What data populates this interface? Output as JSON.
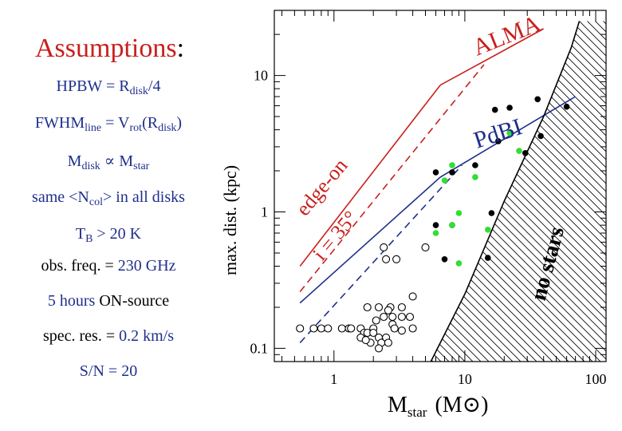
{
  "title": {
    "main": "Assumptions",
    "colon": ":"
  },
  "assumptions": {
    "hpbw": {
      "lhs": "HPBW = R",
      "sub": "disk",
      "rhs": "/4"
    },
    "fwhm": {
      "lhs": "FWHM",
      "sub1": "line",
      "mid": " = V",
      "sub2": "rot",
      "mid2": "(R",
      "sub3": "disk",
      "rhs": ")"
    },
    "mdisk": {
      "lhs": "M",
      "sub1": "disk",
      "mid": " ∝ M",
      "sub2": "star"
    },
    "ncol": {
      "text": "same <N",
      "sub": "col",
      "rhs": "> in all disks"
    },
    "tb": {
      "lhs": "T",
      "sub": "B",
      "rhs": " > 20 K"
    },
    "freq": {
      "label": "obs. freq. = ",
      "value": "230 GHz"
    },
    "hours": {
      "value": "5 hours",
      "label": " ON-source"
    },
    "specres": {
      "label": "spec. res. = ",
      "value": "0.2 km/s"
    },
    "sn": {
      "text": "S/N = 20"
    }
  },
  "chart_data": {
    "type": "scatter",
    "xscale": "log",
    "yscale": "log",
    "xlim": [
      0.35,
      120
    ],
    "ylim": [
      0.08,
      30
    ],
    "xlabel": "M",
    "xlabel_sub": "star",
    "xlabel_unit": "(M⊙)",
    "ylabel": "max. dist. (kpc)",
    "xticks": [
      1,
      10,
      100
    ],
    "xtick_labels": [
      "1",
      "10",
      "100"
    ],
    "yticks": [
      0.1,
      1,
      10
    ],
    "ytick_labels": [
      "0.1",
      "1",
      "10"
    ],
    "colors": {
      "alma": "#c8201c",
      "pdbi": "#1f2f8c",
      "green": "#33dd33",
      "black": "#000000"
    },
    "lines": [
      {
        "name": "ALMA edge-on",
        "style": "solid",
        "color": "alma",
        "points": [
          [
            0.55,
            0.4
          ],
          [
            6.5,
            8.5
          ],
          [
            40,
            22
          ]
        ]
      },
      {
        "name": "ALMA i=35",
        "style": "dashed",
        "color": "alma",
        "points": [
          [
            0.55,
            0.26
          ],
          [
            14,
            12
          ]
        ]
      },
      {
        "name": "PdBI edge-on",
        "style": "solid",
        "color": "pdbi",
        "points": [
          [
            0.55,
            0.215
          ],
          [
            6.5,
            1.8
          ],
          [
            70,
            7
          ]
        ]
      },
      {
        "name": "PdBI i=35",
        "style": "dashed",
        "color": "pdbi",
        "points": [
          [
            0.55,
            0.11
          ],
          [
            9.5,
            2.2
          ]
        ]
      },
      {
        "name": "no stars boundary",
        "style": "solid",
        "color": "black",
        "points": [
          [
            5.5,
            0.08
          ],
          [
            10,
            0.25
          ],
          [
            20,
            1.2
          ],
          [
            40,
            5
          ],
          [
            65,
            16
          ],
          [
            75,
            25
          ]
        ]
      }
    ],
    "labels": {
      "alma": "ALMA",
      "pdbi": "PdBI",
      "edge_on": "edge-on",
      "incl": "i = 35°",
      "no_stars": "no stars"
    },
    "series": [
      {
        "name": "black filled",
        "marker": "filled",
        "color": "black",
        "points": [
          [
            6,
            1.95
          ],
          [
            8,
            1.95
          ],
          [
            12,
            2.2
          ],
          [
            6,
            0.8
          ],
          [
            8,
            0.8
          ],
          [
            18,
            3.3
          ],
          [
            17,
            5.6
          ],
          [
            22,
            5.8
          ],
          [
            36,
            6.7
          ],
          [
            29,
            2.7
          ],
          [
            38,
            3.6
          ],
          [
            60,
            5.9
          ],
          [
            16,
            0.98
          ],
          [
            7,
            0.45
          ],
          [
            15,
            0.46
          ]
        ]
      },
      {
        "name": "green filled",
        "marker": "filled",
        "color": "green",
        "points": [
          [
            8,
            2.2
          ],
          [
            7,
            1.7
          ],
          [
            12,
            1.8
          ],
          [
            22,
            3.8
          ],
          [
            26,
            2.8
          ],
          [
            9,
            0.98
          ],
          [
            8,
            0.8
          ],
          [
            6,
            0.7
          ],
          [
            15,
            0.74
          ],
          [
            9,
            0.42
          ]
        ]
      },
      {
        "name": "open circles",
        "marker": "open",
        "color": "black",
        "points": [
          [
            0.55,
            0.14
          ],
          [
            0.7,
            0.14
          ],
          [
            0.8,
            0.14
          ],
          [
            0.9,
            0.14
          ],
          [
            1.15,
            0.14
          ],
          [
            1.3,
            0.14
          ],
          [
            1.35,
            0.14
          ],
          [
            1.6,
            0.14
          ],
          [
            1.7,
            0.13
          ],
          [
            1.8,
            0.13
          ],
          [
            2,
            0.14
          ],
          [
            2,
            0.13
          ],
          [
            2.2,
            0.12
          ],
          [
            2.3,
            0.11
          ],
          [
            2.5,
            0.12
          ],
          [
            2.1,
            0.16
          ],
          [
            1.8,
            0.2
          ],
          [
            2.2,
            0.2
          ],
          [
            2.4,
            0.17
          ],
          [
            2.8,
            0.15
          ],
          [
            2.8,
            0.17
          ],
          [
            3.3,
            0.17
          ],
          [
            3.8,
            0.17
          ],
          [
            4,
            0.24
          ],
          [
            3.3,
            0.2
          ],
          [
            2.7,
            0.2
          ],
          [
            2.6,
            0.19
          ],
          [
            2.4,
            0.55
          ],
          [
            2.5,
            0.45
          ],
          [
            3,
            0.45
          ],
          [
            5,
            0.55
          ],
          [
            4,
            0.14
          ],
          [
            2.6,
            0.11
          ],
          [
            2.2,
            0.1
          ],
          [
            1.9,
            0.11
          ],
          [
            1.6,
            0.12
          ],
          [
            1.75,
            0.115
          ],
          [
            2.9,
            0.14
          ],
          [
            3.3,
            0.135
          ]
        ]
      }
    ]
  }
}
